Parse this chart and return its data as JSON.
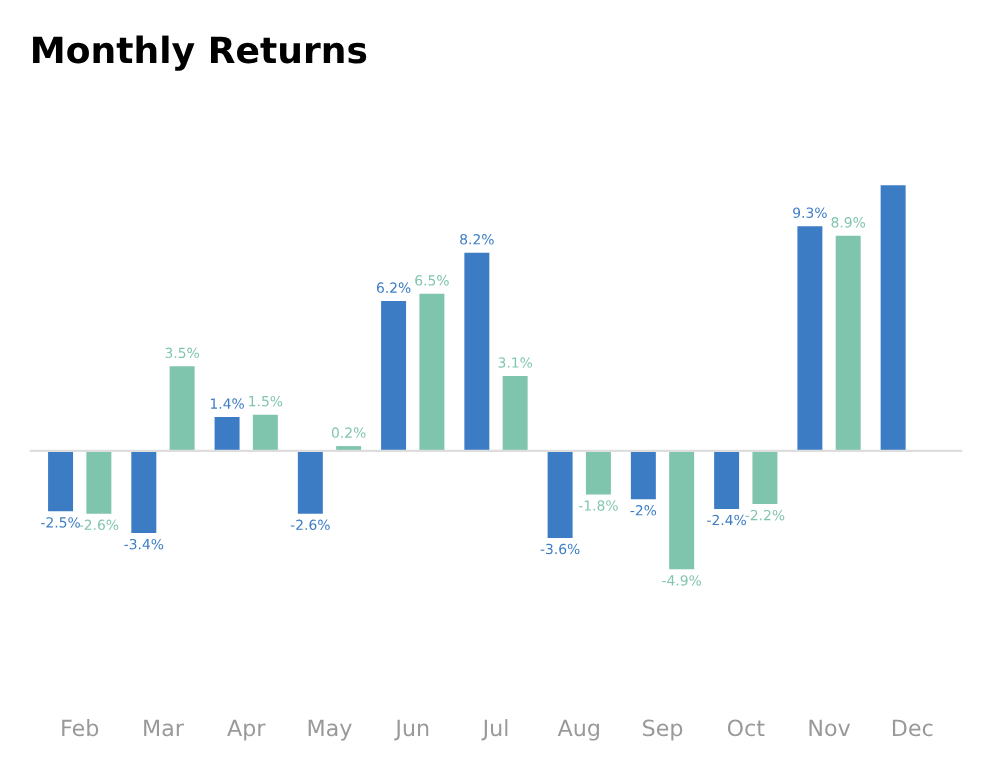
{
  "chart_data": {
    "type": "bar",
    "title": "Monthly Returns",
    "categories": [
      "Feb",
      "Mar",
      "Apr",
      "May",
      "Jun",
      "Jul",
      "Aug",
      "Sep",
      "Oct",
      "Nov",
      "Dec"
    ],
    "series": [
      {
        "color": "#3b7cc4",
        "values": [
          -2.5,
          -3.4,
          1.4,
          -2.6,
          6.2,
          8.2,
          -3.6,
          -2,
          -2.4,
          9.3,
          11
        ],
        "value_labels": [
          "-2.5%",
          "-3.4%",
          "1.4%",
          "-2.6%",
          "6.2%",
          "8.2%",
          "-3.6%",
          "-2%",
          "-2.4%",
          "9.3%",
          null
        ]
      },
      {
        "color": "#7fc4ac",
        "values": [
          -2.6,
          3.5,
          1.5,
          0.2,
          6.5,
          3.1,
          -1.8,
          -4.9,
          -2.2,
          8.9,
          null
        ],
        "value_labels": [
          "-2.6%",
          "3.5%",
          "1.5%",
          "0.2%",
          "6.5%",
          "3.1%",
          "-1.8%",
          "-4.9%",
          "-2.2%",
          "8.9%",
          null
        ]
      }
    ],
    "grid": false,
    "legend": false
  }
}
